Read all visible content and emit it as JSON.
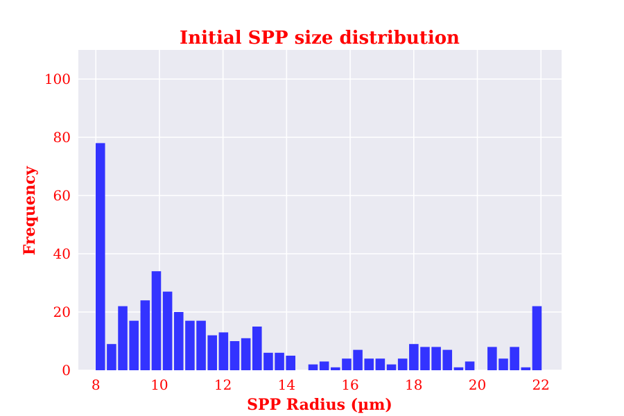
{
  "chart_data": {
    "type": "bar",
    "title": "Initial SPP size distribution",
    "xlabel": "SPP Radius (µm)",
    "ylabel": "Frequency",
    "x": [
      8.1425,
      8.4946,
      8.8467,
      9.1988,
      9.5509,
      9.903,
      10.2551,
      10.6072,
      10.9593,
      11.3114,
      11.6635,
      12.0156,
      12.3677,
      12.7198,
      13.0719,
      13.424,
      13.7761,
      14.1282,
      14.4803,
      14.8324,
      15.1845,
      15.5366,
      15.8887,
      16.2408,
      16.5929,
      16.945,
      17.2971,
      17.6492,
      18.0013,
      18.3534,
      18.7055,
      19.0576,
      19.4097,
      19.7618,
      20.1139,
      20.466,
      20.8181,
      21.1702,
      21.5223,
      21.8744
    ],
    "values": [
      78,
      9,
      22,
      17,
      24,
      34,
      27,
      20,
      17,
      17,
      12,
      13,
      10,
      11,
      15,
      6,
      6,
      5,
      0,
      2,
      3,
      1,
      4,
      7,
      4,
      4,
      2,
      4,
      9,
      8,
      8,
      7,
      1,
      3,
      0,
      8,
      4,
      8,
      1,
      22
    ],
    "xlim": [
      7.45,
      22.65
    ],
    "ylim": [
      0,
      110
    ],
    "xticks": [
      "8",
      "10",
      "12",
      "14",
      "16",
      "18",
      "20",
      "22"
    ],
    "yticks": [
      "0",
      "20",
      "40",
      "60",
      "80",
      "100"
    ],
    "grid": true,
    "colors": {
      "bar": "#3333ff",
      "background": "#eaeaf2",
      "grid": "#ffffff",
      "text": "#ff0000"
    }
  }
}
